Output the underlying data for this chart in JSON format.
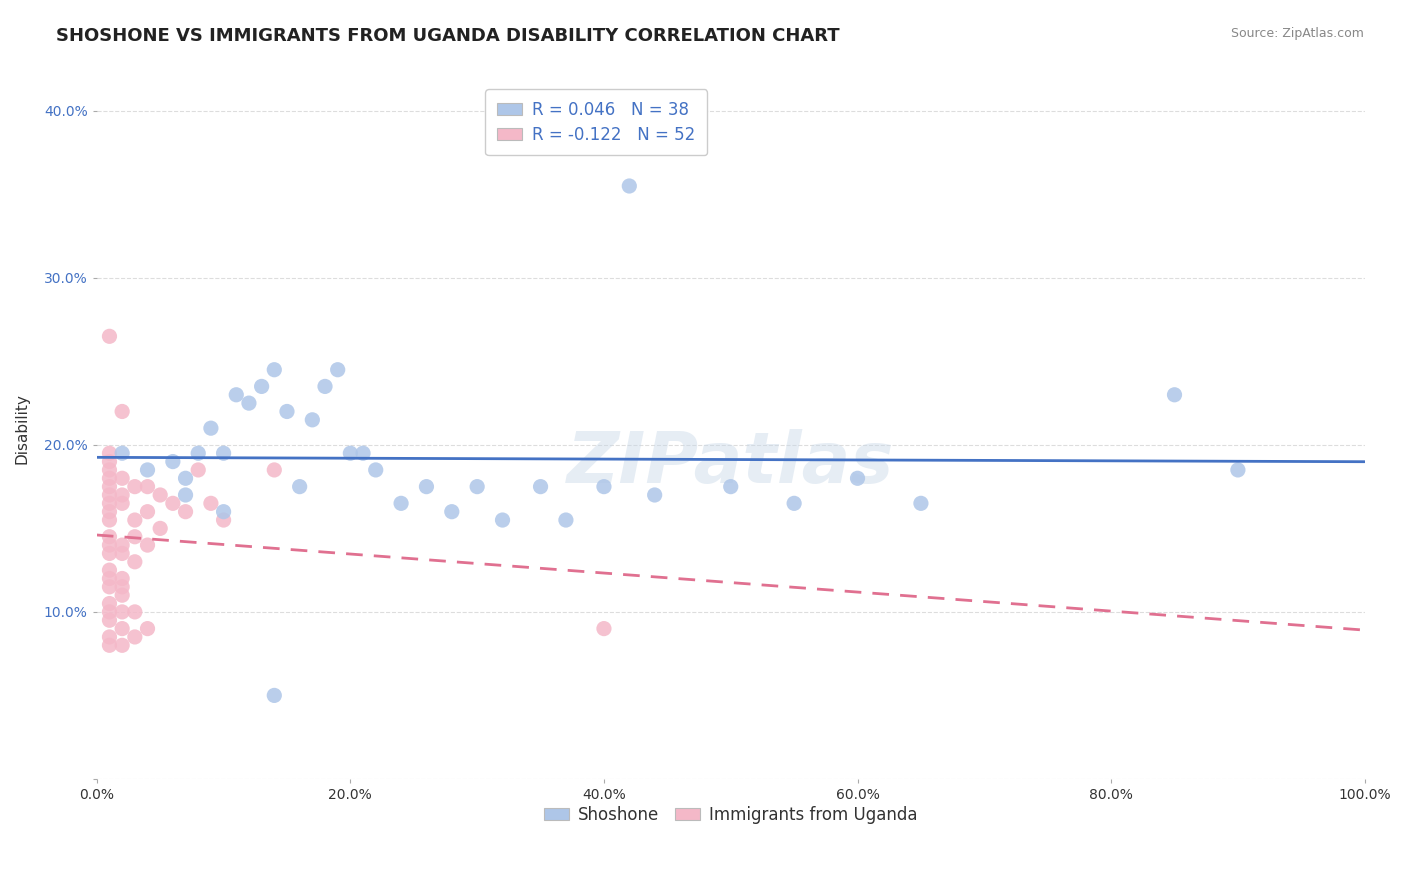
{
  "title": "SHOSHONE VS IMMIGRANTS FROM UGANDA DISABILITY CORRELATION CHART",
  "source": "Source: ZipAtlas.com",
  "ylabel": "Disability",
  "watermark": "ZIPatlas",
  "xlim": [
    0.0,
    1.0
  ],
  "ylim": [
    0.0,
    0.42
  ],
  "xticks": [
    0.0,
    0.2,
    0.4,
    0.6,
    0.8,
    1.0
  ],
  "yticks": [
    0.0,
    0.1,
    0.2,
    0.3,
    0.4
  ],
  "xtick_labels": [
    "0.0%",
    "20.0%",
    "40.0%",
    "60.0%",
    "80.0%",
    "100.0%"
  ],
  "ytick_labels": [
    "",
    "10.0%",
    "20.0%",
    "30.0%",
    "40.0%"
  ],
  "legend_r_labels": [
    "R = 0.046   N = 38",
    "R = -0.122   N = 52"
  ],
  "shoshone_color": "#aec6e8",
  "uganda_color": "#f4b8c8",
  "shoshone_line_color": "#4472c4",
  "uganda_line_color": "#e07090",
  "shoshone_scatter": [
    [
      0.02,
      0.195
    ],
    [
      0.04,
      0.185
    ],
    [
      0.06,
      0.19
    ],
    [
      0.07,
      0.18
    ],
    [
      0.07,
      0.17
    ],
    [
      0.08,
      0.195
    ],
    [
      0.09,
      0.21
    ],
    [
      0.1,
      0.195
    ],
    [
      0.1,
      0.16
    ],
    [
      0.11,
      0.23
    ],
    [
      0.12,
      0.225
    ],
    [
      0.13,
      0.235
    ],
    [
      0.14,
      0.245
    ],
    [
      0.15,
      0.22
    ],
    [
      0.16,
      0.175
    ],
    [
      0.17,
      0.215
    ],
    [
      0.18,
      0.235
    ],
    [
      0.19,
      0.245
    ],
    [
      0.2,
      0.195
    ],
    [
      0.21,
      0.195
    ],
    [
      0.22,
      0.185
    ],
    [
      0.24,
      0.165
    ],
    [
      0.26,
      0.175
    ],
    [
      0.28,
      0.16
    ],
    [
      0.3,
      0.175
    ],
    [
      0.32,
      0.155
    ],
    [
      0.35,
      0.175
    ],
    [
      0.37,
      0.155
    ],
    [
      0.4,
      0.175
    ],
    [
      0.42,
      0.355
    ],
    [
      0.44,
      0.17
    ],
    [
      0.5,
      0.175
    ],
    [
      0.55,
      0.165
    ],
    [
      0.6,
      0.18
    ],
    [
      0.65,
      0.165
    ],
    [
      0.85,
      0.23
    ],
    [
      0.9,
      0.185
    ],
    [
      0.14,
      0.05
    ]
  ],
  "uganda_scatter": [
    [
      0.01,
      0.265
    ],
    [
      0.01,
      0.195
    ],
    [
      0.01,
      0.19
    ],
    [
      0.01,
      0.185
    ],
    [
      0.01,
      0.18
    ],
    [
      0.01,
      0.175
    ],
    [
      0.01,
      0.17
    ],
    [
      0.01,
      0.165
    ],
    [
      0.01,
      0.16
    ],
    [
      0.01,
      0.155
    ],
    [
      0.01,
      0.145
    ],
    [
      0.01,
      0.14
    ],
    [
      0.01,
      0.135
    ],
    [
      0.01,
      0.125
    ],
    [
      0.01,
      0.12
    ],
    [
      0.01,
      0.115
    ],
    [
      0.01,
      0.105
    ],
    [
      0.01,
      0.1
    ],
    [
      0.01,
      0.095
    ],
    [
      0.01,
      0.085
    ],
    [
      0.01,
      0.08
    ],
    [
      0.02,
      0.22
    ],
    [
      0.02,
      0.18
    ],
    [
      0.02,
      0.17
    ],
    [
      0.02,
      0.165
    ],
    [
      0.02,
      0.14
    ],
    [
      0.02,
      0.135
    ],
    [
      0.02,
      0.12
    ],
    [
      0.02,
      0.115
    ],
    [
      0.02,
      0.11
    ],
    [
      0.02,
      0.1
    ],
    [
      0.02,
      0.09
    ],
    [
      0.02,
      0.08
    ],
    [
      0.03,
      0.175
    ],
    [
      0.03,
      0.155
    ],
    [
      0.03,
      0.145
    ],
    [
      0.03,
      0.13
    ],
    [
      0.03,
      0.1
    ],
    [
      0.03,
      0.085
    ],
    [
      0.04,
      0.175
    ],
    [
      0.04,
      0.16
    ],
    [
      0.04,
      0.14
    ],
    [
      0.04,
      0.09
    ],
    [
      0.05,
      0.17
    ],
    [
      0.05,
      0.15
    ],
    [
      0.06,
      0.165
    ],
    [
      0.07,
      0.16
    ],
    [
      0.08,
      0.185
    ],
    [
      0.09,
      0.165
    ],
    [
      0.1,
      0.155
    ],
    [
      0.14,
      0.185
    ],
    [
      0.4,
      0.09
    ]
  ],
  "background_color": "#ffffff",
  "grid_color": "#dddddd",
  "title_fontsize": 13,
  "axis_fontsize": 11,
  "tick_fontsize": 10,
  "legend_fontsize": 12
}
